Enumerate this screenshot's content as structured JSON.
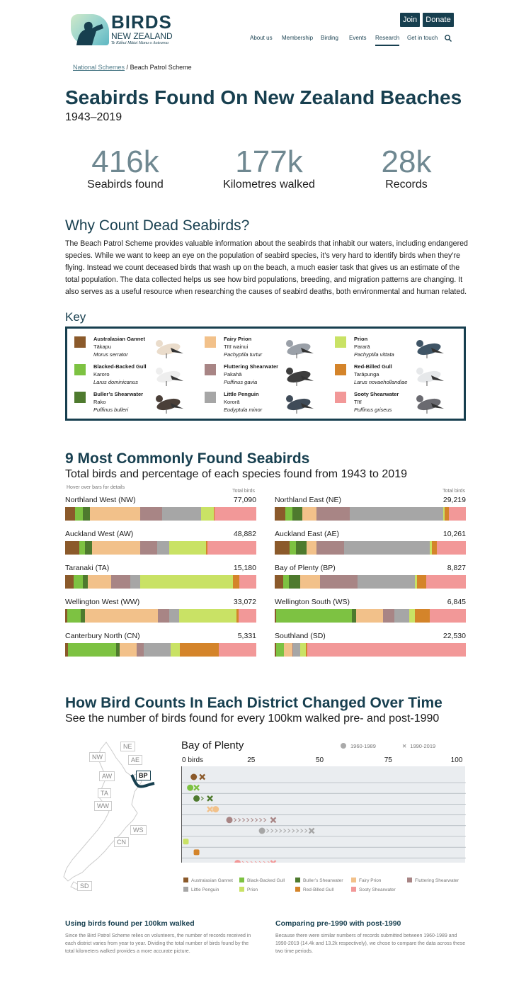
{
  "header": {
    "logo": {
      "line1": "BIRDS",
      "line2": "NEW ZEALAND",
      "line3": "Te Kāhui Mātai Manu o Aotearoa"
    },
    "join": "Join",
    "donate": "Donate",
    "nav": [
      {
        "label": "About us"
      },
      {
        "label": "Membership"
      },
      {
        "label": "Birding"
      },
      {
        "label": "Events"
      },
      {
        "label": "Research",
        "active": true
      },
      {
        "label": "Get in touch"
      }
    ],
    "search_icon": "search-icon"
  },
  "breadcrumb": {
    "parent": "National Schemes",
    "sep": " / ",
    "current": "Beach Patrol Scheme"
  },
  "title": "Seabirds Found On New Zealand Beaches",
  "subtitle": "1943–2019",
  "stats": [
    {
      "value": "416k",
      "label": "Seabirds found"
    },
    {
      "value": "177k",
      "label": "Kilometres walked"
    },
    {
      "value": "28k",
      "label": "Records"
    }
  ],
  "why": {
    "heading": "Why Count Dead Seabirds?",
    "text": "The Beach Patrol Scheme provides valuable information about the seabirds that inhabit our waters, including endangered species. While we want to keep an eye on the population of seabird species, it’s very hard to identify birds when they’re flying. Instead we count deceased birds that wash up on the beach, a much easier task that gives us an estimate of the total population. The data collected helps us see how bird populations, breeding, and migration patterns are changing. It also serves as a useful resource when researching the causes of seabird deaths, both environmental and human related."
  },
  "key": {
    "heading": "Key",
    "species": [
      {
        "name": "Australasian Gannet",
        "maori": "Tākapu",
        "latin": "Morus serrator",
        "color": "#8b5a2b"
      },
      {
        "name": "Blacked-Backed Gull",
        "maori": "Karoro",
        "latin": "Larus dominicanus",
        "color": "#7dc242"
      },
      {
        "name": "Buller’s Shearwater",
        "maori": "Rako",
        "latin": "Puffinus bulleri",
        "color": "#4e7a2e"
      },
      {
        "name": "Fairy Prion",
        "maori": "Tītī wainui",
        "latin": "Pachyptila turtur",
        "color": "#f2c18a"
      },
      {
        "name": "Fluttering Shearwater",
        "maori": "Pakahā",
        "latin": "Puffinus gavia",
        "color": "#a88585"
      },
      {
        "name": "Little Penguin",
        "maori": "Kororā",
        "latin": "Eudyptula minor",
        "color": "#a6a6a6"
      },
      {
        "name": "Prion",
        "maori": "Pararā",
        "latin": "Pachyptila vittata",
        "color": "#c9e265"
      },
      {
        "name": "Red-Billed Gull",
        "maori": "Tarāpunga",
        "latin": "Larus novaehollandiae",
        "color": "#d4842a"
      },
      {
        "name": "Sooty Shearwater",
        "maori": "Tītī",
        "latin": "Puffinus griseus",
        "color": "#f29898"
      }
    ]
  },
  "common": {
    "heading": "9 Most Commonly Found Seabirds",
    "subheading": "Total birds and percentage of each species found from 1943 to 2019",
    "hover_note": "Hover over bars for details",
    "total_label": "Total birds"
  },
  "chart_data": [
    {
      "type": "bar",
      "stacked": true,
      "orientation": "horizontal",
      "unit": "percent of total birds (estimated)",
      "species_order": [
        "Australasian Gannet",
        "Black-Backed Gull",
        "Buller’s Shearwater",
        "Fairy Prion",
        "Fluttering Shearwater",
        "Little Penguin",
        "Prion",
        "Red-Billed Gull",
        "Sooty Shearwater"
      ],
      "districts": [
        {
          "name": "Northland West (NW)",
          "total": "77,090",
          "values": [
            5.3,
            4.0,
            3.5,
            26.4,
            11.4,
            20.6,
            6.5,
            0.6,
            21.7
          ]
        },
        {
          "name": "Northland East (NE)",
          "total": "29,219",
          "values": [
            5.6,
            3.7,
            5.3,
            7.1,
            17.5,
            48.9,
            0.7,
            2.5,
            8.7
          ]
        },
        {
          "name": "Auckland West (AW)",
          "total": "48,882",
          "values": [
            7.4,
            3.1,
            3.5,
            25.4,
            8.7,
            6.2,
            19.4,
            0.7,
            25.6
          ]
        },
        {
          "name": "Auckland East (AE)",
          "total": "10,261",
          "values": [
            7.8,
            3.5,
            5.2,
            5.3,
            14.5,
            44.7,
            1.2,
            2.5,
            15.3
          ]
        },
        {
          "name": "Taranaki (TA)",
          "total": "15,180",
          "values": [
            4.3,
            5.0,
            2.6,
            12.3,
            9.7,
            5.3,
            48.6,
            3.3,
            8.8
          ]
        },
        {
          "name": "Bay of Plenty (BP)",
          "total": "8,827",
          "values": [
            4.3,
            3.2,
            5.8,
            10.3,
            19.6,
            30.1,
            1.0,
            4.7,
            20.8
          ]
        },
        {
          "name": "Wellington West (WW)",
          "total": "33,072",
          "values": [
            1.2,
            6.9,
            2.2,
            38.0,
            6.2,
            5.0,
            30.0,
            1.1,
            9.3
          ]
        },
        {
          "name": "Wellington South (WS)",
          "total": "6,845",
          "values": [
            0.9,
            39.3,
            2.5,
            14.1,
            5.7,
            7.7,
            3.2,
            7.7,
            18.9
          ]
        },
        {
          "name": "Canterbury North (CN)",
          "total": "5,331",
          "values": [
            1.5,
            25.1,
            2.0,
            8.9,
            3.7,
            14.1,
            4.6,
            20.3,
            19.7
          ]
        },
        {
          "name": "Southland (SD)",
          "total": "22,530",
          "values": [
            0.6,
            4.1,
            0.3,
            4.1,
            0.6,
            3.5,
            3.3,
            0.6,
            82.9
          ]
        }
      ]
    },
    {
      "type": "scatter",
      "subtype": "dumbbell",
      "title": "Bay of Plenty",
      "x_ticks": [
        "0 birds",
        "25",
        "50",
        "75",
        "100"
      ],
      "xlim": [
        0,
        100
      ],
      "grid": true,
      "series": [
        {
          "name": "1960-1989",
          "marker": "circle"
        },
        {
          "name": "1990-2019",
          "marker": "cross"
        }
      ],
      "legend_placement": "top-right",
      "points": [
        {
          "species": "Australasian Gannet",
          "pre": 3.8,
          "post": 6.9
        },
        {
          "species": "Black-Backed Gull",
          "pre": 2.5,
          "post": 4.8
        },
        {
          "species": "Buller’s Shearwater",
          "pre": 4.8,
          "post": 9.7
        },
        {
          "species": "Fairy Prion",
          "pre": 11.8,
          "post": 9.7
        },
        {
          "species": "Fluttering Shearwater",
          "pre": 16.8,
          "post": 32.8
        },
        {
          "species": "Little Penguin",
          "pre": 28.7,
          "post": 46.8
        },
        {
          "species": "Prion",
          "pre": 0.9,
          "post": 0.9
        },
        {
          "species": "Red-Billed Gull",
          "pre": 4.8,
          "post": 4.8
        },
        {
          "species": "Sooty Shearwater",
          "pre": 19.8,
          "post": 32.8
        }
      ],
      "legend": [
        "Australasian Gannet",
        "Black-Backed Gull",
        "Buller’s Shearwater",
        "Fairy Prion",
        "Fluttering Shearwater",
        "Little Penguin",
        "Prion",
        "Red-Billed Gull",
        "Sooty Shearwater"
      ]
    }
  ],
  "change": {
    "heading": "How Bird Counts In Each District Changed Over Time",
    "subheading": "See the number of birds found for every 100km walked pre- and post-1990",
    "map_labels": [
      "NE",
      "NW",
      "AE",
      "BP",
      "AW",
      "TA",
      "WW",
      "WS",
      "CN",
      "SD"
    ],
    "selected": "BP"
  },
  "notes": [
    {
      "heading": "Using birds found per 100km walked",
      "text": "Since the Bird Patrol Scheme relies on volunteers, the number of records received in each district varies from year to year. Dividing the total number of birds found by the total kilometers walked provides a more accurate picture."
    },
    {
      "heading": "Comparing pre-1990 with post-1990",
      "text": "Because there were similar numbers of records submitted between 1960-1989 and 1990-2019 (14.4k and 13.2k respectively), we chose to compare the data across these two time periods."
    }
  ]
}
